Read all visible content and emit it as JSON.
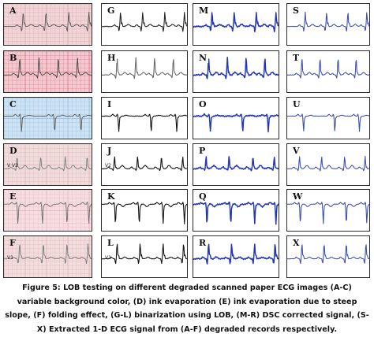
{
  "figure": {
    "panels": [
      {
        "label": "A",
        "column": "degraded",
        "background": "#f0d4d6",
        "grid": "#d9a0a6",
        "trace": "#555555",
        "variant": "a"
      },
      {
        "label": "B",
        "column": "degraded",
        "background": "#f3c9cf",
        "grid": "#d46a78",
        "trace": "#444444",
        "variant": "b"
      },
      {
        "label": "C",
        "column": "degraded",
        "background": "#cde3f4",
        "grid": "#8fb9dc",
        "trace": "#555555",
        "variant": "c"
      },
      {
        "label": "D",
        "column": "degraded",
        "background": "#f1dcdc",
        "grid": "#d8aeb0",
        "trace": "#7a7a7a",
        "variant": "d",
        "lead": "V V2"
      },
      {
        "label": "E",
        "column": "degraded",
        "background": "#f6dde2",
        "grid": "#e2afb9",
        "trace": "#6b6b6b",
        "variant": "e"
      },
      {
        "label": "F",
        "column": "degraded",
        "background": "#f2dcdc",
        "grid": "#dcaeb0",
        "trace": "#7a7a7a",
        "variant": "f",
        "lead": "V1"
      },
      {
        "label": "G",
        "column": "binarized",
        "trace": "#222222",
        "variant": "a"
      },
      {
        "label": "H",
        "column": "binarized",
        "trace": "#6a6a6a",
        "variant": "b"
      },
      {
        "label": "I",
        "column": "binarized",
        "trace": "#111111",
        "variant": "c"
      },
      {
        "label": "J",
        "column": "binarized",
        "trace": "#111111",
        "variant": "d",
        "lead": "V2"
      },
      {
        "label": "K",
        "column": "binarized",
        "trace": "#111111",
        "variant": "e"
      },
      {
        "label": "L",
        "column": "binarized",
        "trace": "#111111",
        "variant": "f",
        "lead": "V1"
      },
      {
        "label": "M",
        "column": "corrected",
        "trace": "#2336b5",
        "variant": "a"
      },
      {
        "label": "N",
        "column": "corrected",
        "trace": "#2336b5",
        "variant": "b"
      },
      {
        "label": "O",
        "column": "corrected",
        "trace": "#2336b5",
        "variant": "c"
      },
      {
        "label": "P",
        "column": "corrected",
        "trace": "#2336b5",
        "variant": "d"
      },
      {
        "label": "Q",
        "column": "corrected",
        "trace": "#2336b5",
        "variant": "e"
      },
      {
        "label": "R",
        "column": "corrected",
        "trace": "#2336b5",
        "variant": "f"
      },
      {
        "label": "S",
        "column": "extracted",
        "trace": "#3e4fb0",
        "variant": "a"
      },
      {
        "label": "T",
        "column": "extracted",
        "trace": "#3e4fb0",
        "variant": "b"
      },
      {
        "label": "U",
        "column": "extracted",
        "trace": "#3e4fb0",
        "variant": "c"
      },
      {
        "label": "V",
        "column": "extracted",
        "trace": "#3e4fb0",
        "variant": "d"
      },
      {
        "label": "W",
        "column": "extracted",
        "trace": "#3e4fb0",
        "variant": "e"
      },
      {
        "label": "X",
        "column": "extracted",
        "trace": "#3e4fb0",
        "variant": "f"
      }
    ]
  },
  "caption": "Figure 5: LOB testing on different degraded scanned paper ECG images (A-C) variable background color, (D) ink evaporation (E) ink evaporation due to steep slope, (F) folding effect, (G-L) binarization using LOB, (M-R) DSC corrected signal, (S-X) Extracted 1-D ECG signal from (A-F) degraded records respectively."
}
